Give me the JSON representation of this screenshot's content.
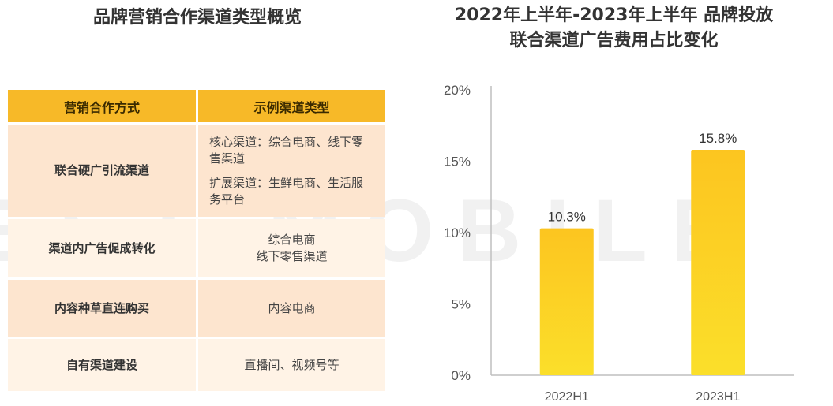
{
  "watermark": "EST MOBILE",
  "left_panel": {
    "title": "品牌营销合作渠道类型概览",
    "table": {
      "headers": [
        "营销合作方式",
        "示例渠道类型"
      ],
      "rows": [
        {
          "method": "联合硬广引流渠道",
          "examples": [
            "核心渠道：综合电商、线下零售渠道",
            "扩展渠道：生鲜电商、生活服务平台"
          ]
        },
        {
          "method": "渠道内广告促成转化",
          "examples": [
            "综合电商\n线下零售渠道"
          ]
        },
        {
          "method": "内容种草直连购买",
          "examples": [
            "内容电商"
          ]
        },
        {
          "method": "自有渠道建设",
          "examples": [
            "直播间、视频号等"
          ]
        }
      ]
    }
  },
  "chart_data": {
    "type": "bar",
    "title": "2022年上半年-2023年上半年 品牌投放\n联合渠道广告费用占比变化",
    "categories": [
      "2022H1",
      "2023H1"
    ],
    "values": [
      10.3,
      15.8
    ],
    "data_labels": [
      "10.3%",
      "15.8%"
    ],
    "y_ticks": [
      "0%",
      "5%",
      "10%",
      "15%",
      "20%"
    ],
    "ylim": [
      0,
      20
    ],
    "xlabel": "",
    "ylabel": "",
    "grid": false,
    "legend": "none",
    "colors": {
      "bar_top": "#fcc520",
      "bar_bottom": "#fbdf2a",
      "axis": "#bfbfbf",
      "tick_text": "#555555",
      "label_text": "#333333"
    }
  }
}
